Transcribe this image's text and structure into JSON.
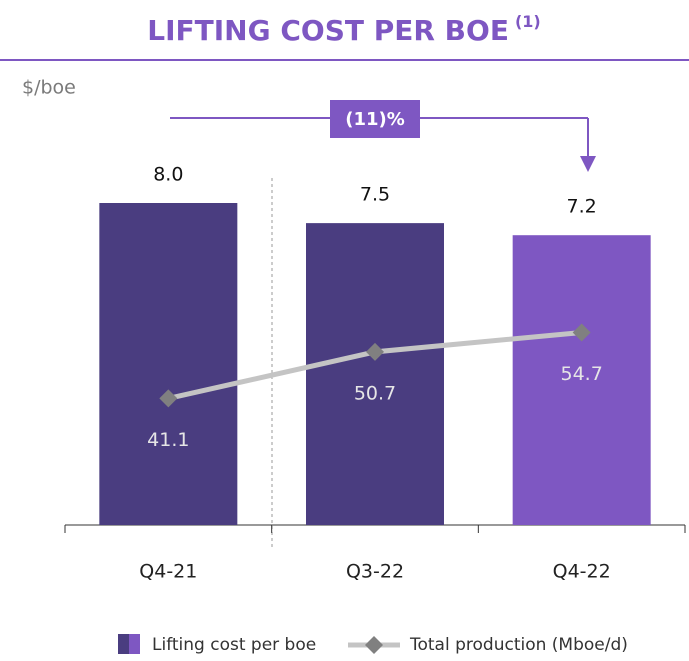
{
  "chart_data": {
    "type": "bar",
    "title": "LIFTING COST PER BOE",
    "title_note": "(1)",
    "unit_label": "$/boe",
    "annotation": "(11)%",
    "categories": [
      "Q4-21",
      "Q3-22",
      "Q4-22"
    ],
    "ylim": [
      0,
      10
    ],
    "y2lim": [
      15,
      98
    ],
    "series": [
      {
        "name": "Lifting cost per boe",
        "type": "bar",
        "colors": [
          "#4a3d80",
          "#4a3d80",
          "#7e57c2"
        ],
        "values": [
          8.0,
          7.5,
          7.2
        ],
        "value_labels": [
          "8.0",
          "7.5",
          "7.2"
        ]
      },
      {
        "name": "Total production (Mboe/d)",
        "type": "line",
        "axis": "y2",
        "color": "#c4c4c4",
        "marker_color": "#808080",
        "values": [
          41.1,
          50.7,
          54.7
        ]
      }
    ]
  }
}
